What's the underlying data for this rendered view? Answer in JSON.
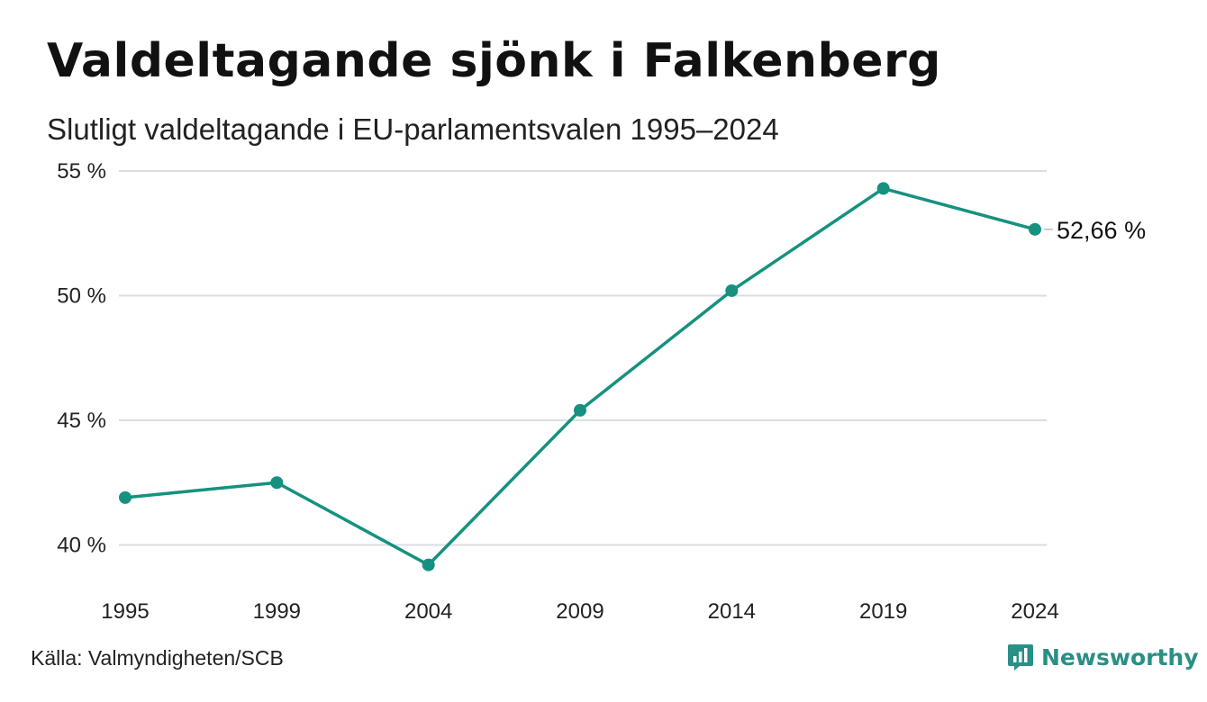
{
  "header": {
    "title": "Valdeltagande sjönk i Falkenberg",
    "subtitle": "Slutligt valdeltagande i EU-parlamentsvalen 1995–2024"
  },
  "footer": {
    "source": "Källa: Valmyndigheten/SCB",
    "brand": "Newsworthy",
    "brand_icon": "newsworthy-logo-icon"
  },
  "colors": {
    "line": "#16917f",
    "grid": "#dcdde3",
    "brand": "#2a8f86"
  },
  "chart_data": {
    "type": "line",
    "title": "Valdeltagande sjönk i Falkenberg",
    "subtitle": "Slutligt valdeltagande i EU-parlamentsvalen 1995–2024",
    "x": [
      "1995",
      "1999",
      "2004",
      "2009",
      "2014",
      "2019",
      "2024"
    ],
    "series": [
      {
        "values": [
          41.9,
          42.5,
          39.2,
          45.4,
          50.2,
          54.3,
          52.66
        ]
      }
    ],
    "yticks": [
      40,
      45,
      50,
      55
    ],
    "ytick_labels": [
      "40 %",
      "45 %",
      "50 %",
      "55 %"
    ],
    "ylim": [
      38,
      55
    ],
    "grid": true,
    "end_label": "52,66 %",
    "xlabel": "",
    "ylabel": ""
  }
}
